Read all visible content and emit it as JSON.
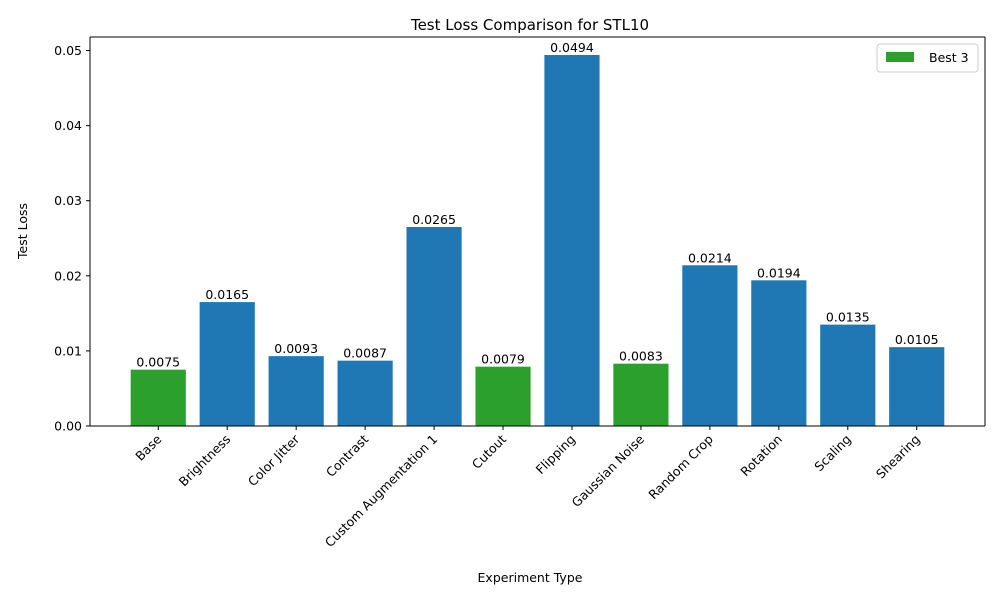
{
  "chart_data": {
    "type": "bar",
    "title": "Test Loss Comparison for STL10",
    "xlabel": "Experiment Type",
    "ylabel": "Test Loss",
    "ylim": [
      0,
      0.0518
    ],
    "yticks": [
      0.0,
      0.01,
      0.02,
      0.03,
      0.04,
      0.05
    ],
    "ytick_labels": [
      "0.00",
      "0.01",
      "0.02",
      "0.03",
      "0.04",
      "0.05"
    ],
    "categories": [
      "Base",
      "Brightness",
      "Color Jitter",
      "Contrast",
      "Custom Augmentation 1",
      "Cutout",
      "Flipping",
      "Gaussian Noise",
      "Random Crop",
      "Rotation",
      "Scaling",
      "Shearing"
    ],
    "values": [
      0.0075,
      0.0165,
      0.0093,
      0.0087,
      0.0265,
      0.0079,
      0.0494,
      0.0083,
      0.0214,
      0.0194,
      0.0135,
      0.0105
    ],
    "value_labels": [
      "0.0075",
      "0.0165",
      "0.0093",
      "0.0087",
      "0.0265",
      "0.0079",
      "0.0494",
      "0.0083",
      "0.0214",
      "0.0194",
      "0.0135",
      "0.0105"
    ],
    "highlight": [
      true,
      false,
      false,
      false,
      false,
      true,
      false,
      true,
      false,
      false,
      false,
      false
    ],
    "colors": {
      "default": "#1f77b4",
      "highlight": "#2ca02c"
    },
    "legend": {
      "entries": [
        "Best 3"
      ],
      "placement": "top-right"
    },
    "grid": false
  }
}
